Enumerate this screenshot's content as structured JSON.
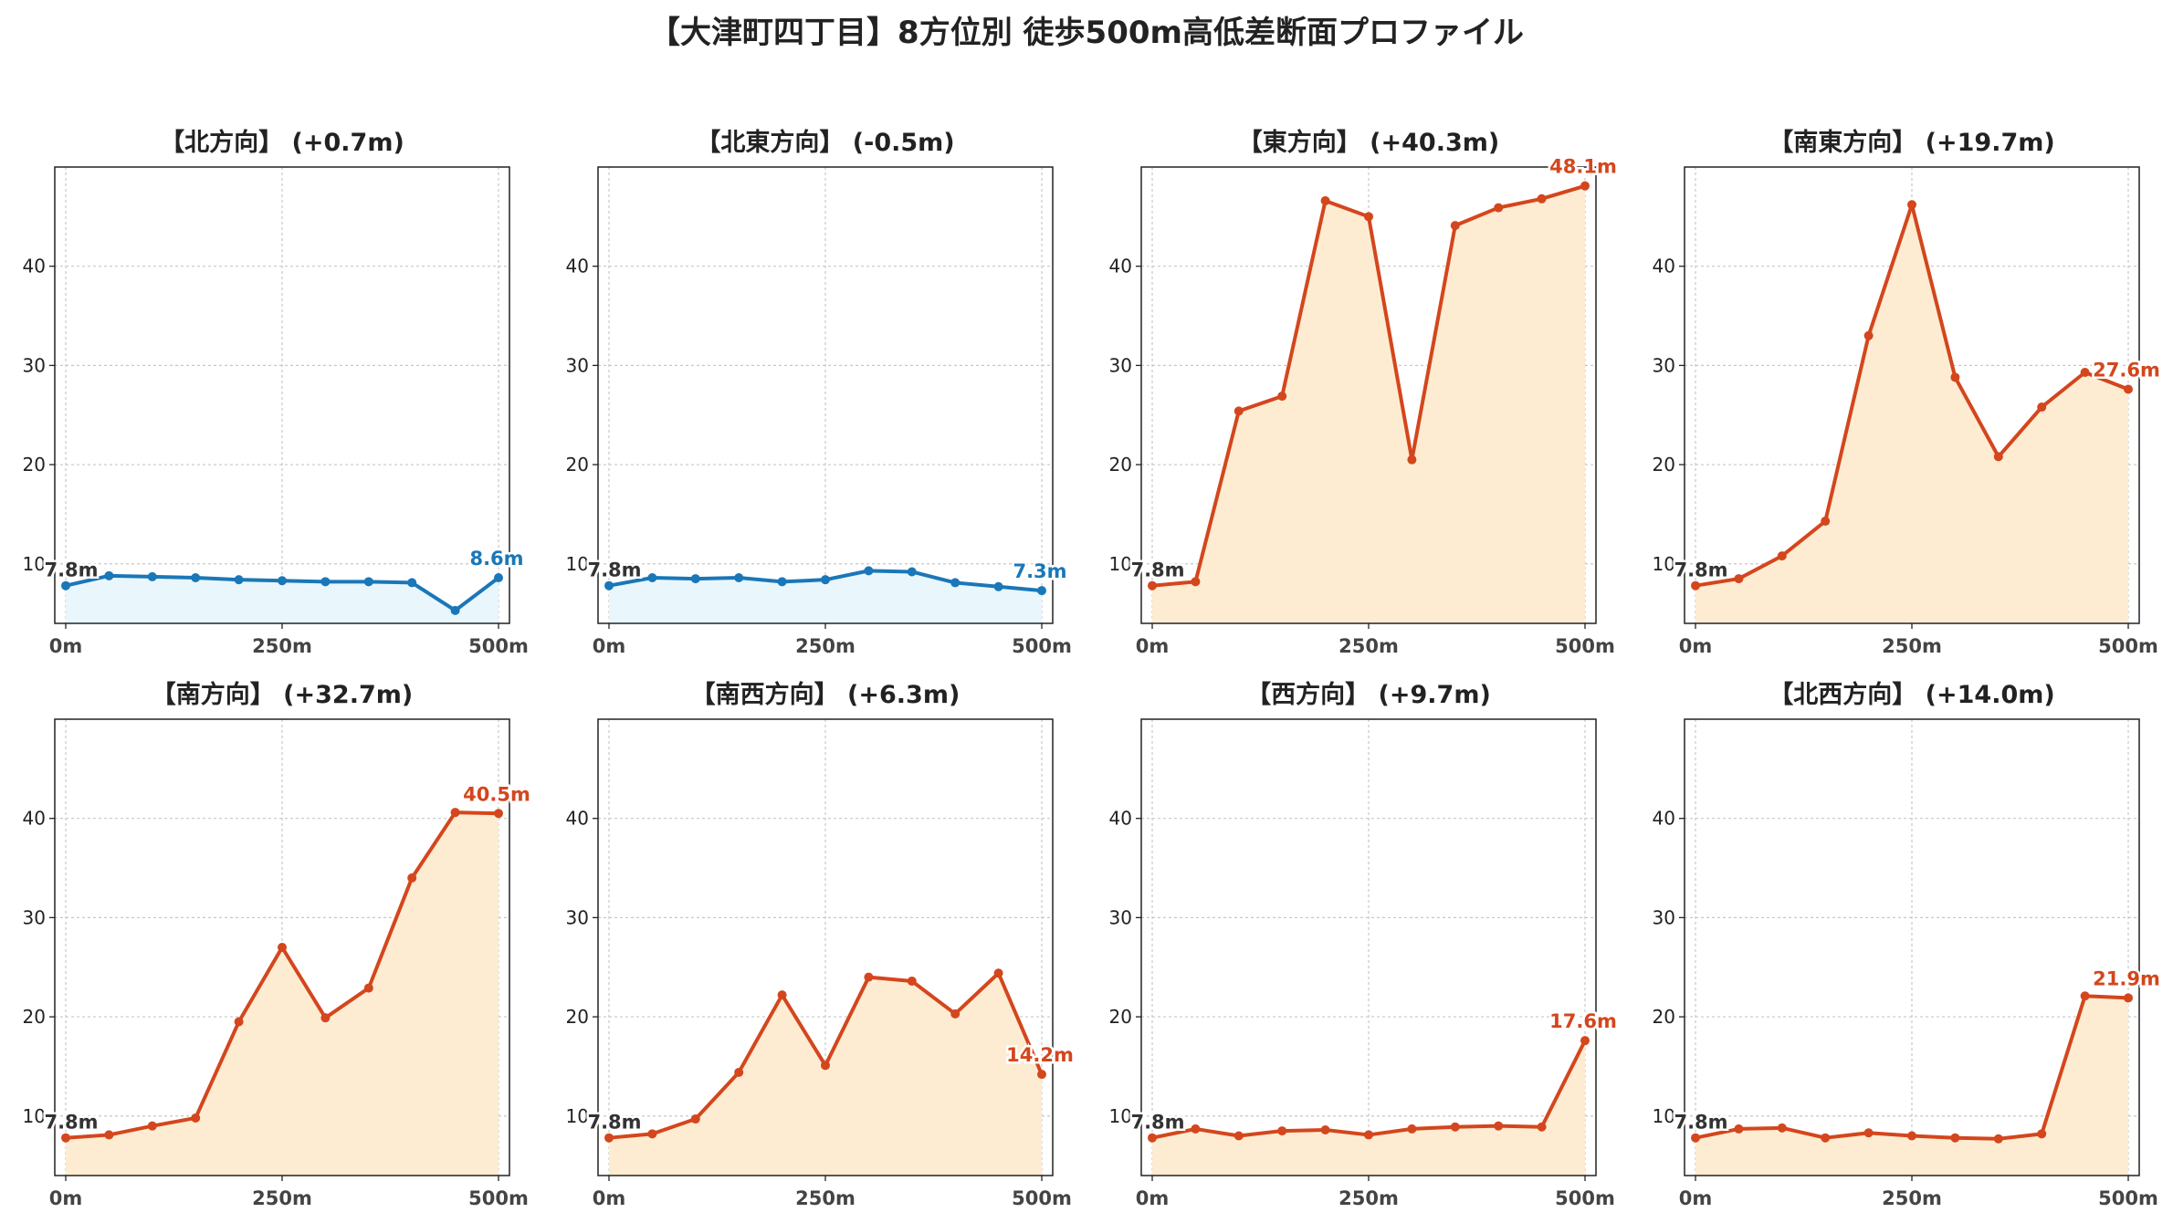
{
  "title": "【大津町四丁目】8方位別 徒歩500m高低差断面プロファイル",
  "colors": {
    "descend_line": "#1a77b8",
    "descend_fill": "#e9f6fb",
    "ascend_line": "#d4461d",
    "ascend_fill": "#fdecd2",
    "start_label": "#333333"
  },
  "chart_data": [
    {
      "type": "area",
      "title": "【北方向】 (+0.7m)",
      "x": [
        0,
        50,
        100,
        150,
        200,
        250,
        300,
        350,
        400,
        450,
        500
      ],
      "values": [
        7.8,
        8.8,
        8.7,
        8.6,
        8.4,
        8.3,
        8.2,
        8.2,
        8.1,
        5.3,
        8.6
      ],
      "start_label": "7.8m",
      "end_label": "8.6m",
      "trend": "descend",
      "xticks": [
        "0m",
        "250m",
        "500m"
      ],
      "yticks": [
        10,
        20,
        30,
        40
      ],
      "ylim": [
        4,
        50
      ],
      "grid": true
    },
    {
      "type": "area",
      "title": "【北東方向】 (-0.5m)",
      "x": [
        0,
        50,
        100,
        150,
        200,
        250,
        300,
        350,
        400,
        450,
        500
      ],
      "values": [
        7.8,
        8.6,
        8.5,
        8.6,
        8.2,
        8.4,
        9.3,
        9.2,
        8.1,
        7.7,
        7.3
      ],
      "start_label": "7.8m",
      "end_label": "7.3m",
      "trend": "descend",
      "xticks": [
        "0m",
        "250m",
        "500m"
      ],
      "yticks": [
        10,
        20,
        30,
        40
      ],
      "ylim": [
        4,
        50
      ],
      "grid": true
    },
    {
      "type": "area",
      "title": "【東方向】 (+40.3m)",
      "x": [
        0,
        50,
        100,
        150,
        200,
        250,
        300,
        350,
        400,
        450,
        500
      ],
      "values": [
        7.8,
        8.2,
        25.4,
        26.9,
        46.6,
        45.0,
        20.5,
        44.1,
        45.9,
        46.8,
        48.1
      ],
      "start_label": "7.8m",
      "end_label": "48.1m",
      "trend": "ascend",
      "xticks": [
        "0m",
        "250m",
        "500m"
      ],
      "yticks": [
        10,
        20,
        30,
        40
      ],
      "ylim": [
        4,
        50
      ],
      "grid": true
    },
    {
      "type": "area",
      "title": "【南東方向】 (+19.7m)",
      "x": [
        0,
        50,
        100,
        150,
        200,
        250,
        300,
        350,
        400,
        450,
        500
      ],
      "values": [
        7.8,
        8.5,
        10.8,
        14.3,
        33.0,
        46.2,
        28.8,
        20.8,
        25.8,
        29.3,
        27.6
      ],
      "start_label": "7.8m",
      "end_label": "27.6m",
      "trend": "ascend",
      "xticks": [
        "0m",
        "250m",
        "500m"
      ],
      "yticks": [
        10,
        20,
        30,
        40
      ],
      "ylim": [
        4,
        50
      ],
      "grid": true
    },
    {
      "type": "area",
      "title": "【南方向】 (+32.7m)",
      "x": [
        0,
        50,
        100,
        150,
        200,
        250,
        300,
        350,
        400,
        450,
        500
      ],
      "values": [
        7.8,
        8.1,
        9.0,
        9.8,
        19.5,
        27.0,
        19.9,
        22.9,
        34.0,
        40.6,
        40.5
      ],
      "start_label": "7.8m",
      "end_label": "40.5m",
      "trend": "ascend",
      "xticks": [
        "0m",
        "250m",
        "500m"
      ],
      "yticks": [
        10,
        20,
        30,
        40
      ],
      "ylim": [
        4,
        50
      ],
      "grid": true
    },
    {
      "type": "area",
      "title": "【南西方向】 (+6.3m)",
      "x": [
        0,
        50,
        100,
        150,
        200,
        250,
        300,
        350,
        400,
        450,
        500
      ],
      "values": [
        7.8,
        8.2,
        9.7,
        14.4,
        22.2,
        15.1,
        24.0,
        23.6,
        20.3,
        24.4,
        14.2
      ],
      "start_label": "7.8m",
      "end_label": "14.2m",
      "trend": "ascend",
      "xticks": [
        "0m",
        "250m",
        "500m"
      ],
      "yticks": [
        10,
        20,
        30,
        40
      ],
      "ylim": [
        4,
        50
      ],
      "grid": true
    },
    {
      "type": "area",
      "title": "【西方向】 (+9.7m)",
      "x": [
        0,
        50,
        100,
        150,
        200,
        250,
        300,
        350,
        400,
        450,
        500
      ],
      "values": [
        7.8,
        8.7,
        8.0,
        8.5,
        8.6,
        8.1,
        8.7,
        8.9,
        9.0,
        8.9,
        17.6
      ],
      "start_label": "7.8m",
      "end_label": "17.6m",
      "trend": "ascend",
      "xticks": [
        "0m",
        "250m",
        "500m"
      ],
      "yticks": [
        10,
        20,
        30,
        40
      ],
      "ylim": [
        4,
        50
      ],
      "grid": true
    },
    {
      "type": "area",
      "title": "【北西方向】 (+14.0m)",
      "x": [
        0,
        50,
        100,
        150,
        200,
        250,
        300,
        350,
        400,
        450,
        500
      ],
      "values": [
        7.8,
        8.7,
        8.8,
        7.8,
        8.3,
        8.0,
        7.8,
        7.7,
        8.2,
        22.1,
        21.9
      ],
      "start_label": "7.8m",
      "end_label": "21.9m",
      "trend": "ascend",
      "xticks": [
        "0m",
        "250m",
        "500m"
      ],
      "yticks": [
        10,
        20,
        30,
        40
      ],
      "ylim": [
        4,
        50
      ],
      "grid": true
    }
  ]
}
